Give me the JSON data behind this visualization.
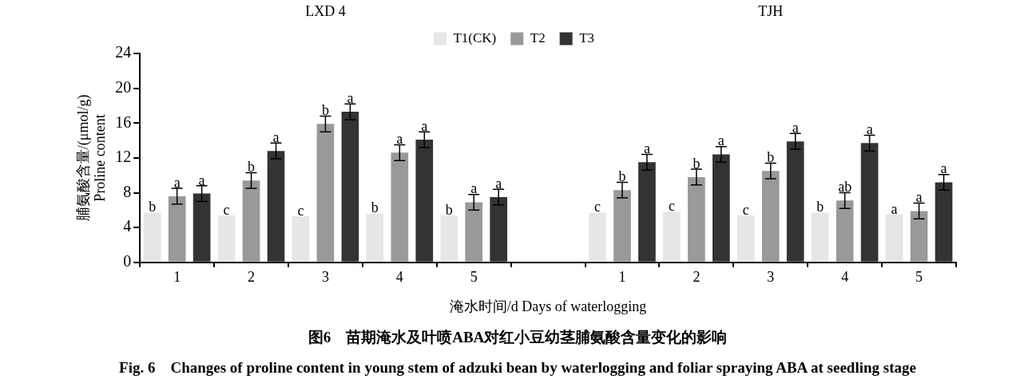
{
  "chart_data": {
    "type": "bar",
    "xlabel": "淹水时间/d Days of waterlogging",
    "ylabel": "脯氨酸含量/(μmol/g)\nProline content",
    "annotations": [
      "LXD 4",
      "TJH",
      "图6　苗期淹水及叶喷ABA对红小豆幼茎脯氨酸含量变化的影响",
      "Fig. 6　Changes of proline content in young stem of adzuki bean by waterlogging and foliar spraying ABA at seedling stage"
    ],
    "categories": [
      "1",
      "2",
      "3",
      "4",
      "5",
      null,
      "1",
      "2",
      "3",
      "4",
      "5"
    ],
    "ylim": [
      0,
      24
    ],
    "yticks": [
      0,
      4,
      8,
      12,
      16,
      20,
      24
    ],
    "legend": "top",
    "series": [
      {
        "name": "T1(CK)",
        "color": "#e6e6e6",
        "values": [
          5.7,
          5.4,
          5.3,
          5.6,
          5.4,
          null,
          5.7,
          5.8,
          5.4,
          5.7,
          5.5
        ],
        "value_labels": [
          "b",
          "c",
          "c",
          "b",
          "b",
          null,
          "c",
          "c",
          "c",
          "b",
          "a"
        ]
      },
      {
        "name": "T2",
        "color": "#999999",
        "values": [
          7.6,
          9.4,
          15.9,
          12.6,
          6.9,
          null,
          8.3,
          9.8,
          10.5,
          7.1,
          5.9
        ],
        "errors": [
          0.9,
          0.9,
          0.9,
          0.9,
          0.9,
          null,
          0.9,
          0.9,
          0.9,
          0.9,
          0.9
        ],
        "value_labels": [
          "a",
          "b",
          "b",
          "a",
          "a",
          null,
          "b",
          "b",
          "b",
          "ab",
          "a"
        ]
      },
      {
        "name": "T3",
        "color": "#333333",
        "values": [
          7.9,
          12.8,
          17.3,
          14.1,
          7.5,
          null,
          11.5,
          12.4,
          13.9,
          13.7,
          9.2
        ],
        "errors": [
          0.9,
          0.9,
          0.9,
          0.9,
          0.9,
          null,
          0.9,
          0.9,
          0.9,
          0.9,
          0.9
        ],
        "value_labels": [
          "a",
          "a",
          "a",
          "a",
          "a",
          null,
          "a",
          "a",
          "a",
          "a",
          "a"
        ]
      }
    ]
  }
}
